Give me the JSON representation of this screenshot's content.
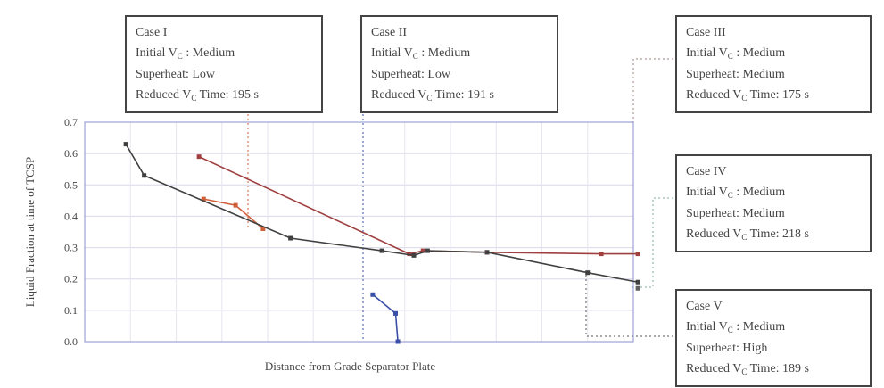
{
  "chart_data": {
    "type": "line",
    "xlabel": "Distance from Grade Separator Plate",
    "ylabel": "Liquid Fraction at time of TCSP",
    "ylim": [
      0,
      0.7
    ],
    "yticks": [
      "0.0",
      "0.1",
      "0.2",
      "0.3",
      "0.4",
      "0.5",
      "0.6",
      "0.7"
    ],
    "xlim": [
      0,
      12
    ],
    "grid": true,
    "series": [
      {
        "id": "case1",
        "color": "#d0603a",
        "points": [
          [
            2.6,
            0.455
          ],
          [
            3.3,
            0.435
          ],
          [
            3.9,
            0.36
          ]
        ]
      },
      {
        "id": "case2",
        "color": "#3a4fa8",
        "points": [
          [
            6.3,
            0.15
          ],
          [
            6.8,
            0.09
          ],
          [
            6.85,
            0.0
          ]
        ]
      },
      {
        "id": "case3",
        "color": "#a04040",
        "points": [
          [
            2.5,
            0.59
          ],
          [
            7.1,
            0.28
          ],
          [
            7.4,
            0.29
          ],
          [
            8.8,
            0.285
          ],
          [
            11.3,
            0.28
          ],
          [
            12.1,
            0.28
          ]
        ]
      },
      {
        "id": "case4",
        "color": "#404040",
        "points": [
          [
            0.9,
            0.63
          ],
          [
            1.3,
            0.53
          ],
          [
            4.5,
            0.33
          ],
          [
            6.5,
            0.29
          ],
          [
            7.2,
            0.275
          ],
          [
            7.5,
            0.29
          ],
          [
            8.8,
            0.285
          ],
          [
            11.0,
            0.22
          ],
          [
            12.1,
            0.19
          ]
        ]
      },
      {
        "id": "case5",
        "color": "#606060",
        "points": [
          [
            12.1,
            0.17
          ]
        ]
      }
    ]
  },
  "cases": [
    {
      "id": "case1",
      "title": "Case I",
      "initial": "Initial V",
      "initial_sub": "C",
      "initial_val": " : Medium",
      "superheat": "Superheat: Low",
      "reduced": "Reduced V",
      "reduced_sub": "C",
      "reduced_val": " Time: 195 s",
      "color": "#d0603a"
    },
    {
      "id": "case2",
      "title": "Case II",
      "initial": "Initial V",
      "initial_sub": "C",
      "initial_val": " : Medium",
      "superheat": "Superheat: Low",
      "reduced": "Reduced V",
      "reduced_sub": "C",
      "reduced_val": " Time: 191 s",
      "color": "#3a4fa8"
    },
    {
      "id": "case3",
      "title": "Case III",
      "initial": "Initial V",
      "initial_sub": "C",
      "initial_val": " : Medium",
      "superheat": "Superheat: Medium",
      "reduced": "Reduced V",
      "reduced_sub": "C",
      "reduced_val": " Time: 175 s",
      "color": "#7a5a5a"
    },
    {
      "id": "case4",
      "title": "Case IV",
      "initial": "Initial V",
      "initial_sub": "C",
      "initial_val": " : Medium",
      "superheat": "Superheat: Medium",
      "reduced": "Reduced V",
      "reduced_sub": "C",
      "reduced_val": " Time: 218 s",
      "color": "#7ea89a"
    },
    {
      "id": "case5",
      "title": "Case V",
      "initial": "Initial V",
      "initial_sub": "C",
      "initial_val": " : Medium",
      "superheat": "Superheat: High",
      "reduced": "Reduced V",
      "reduced_sub": "C",
      "reduced_val": " Time: 189 s",
      "color": "#333333"
    }
  ]
}
